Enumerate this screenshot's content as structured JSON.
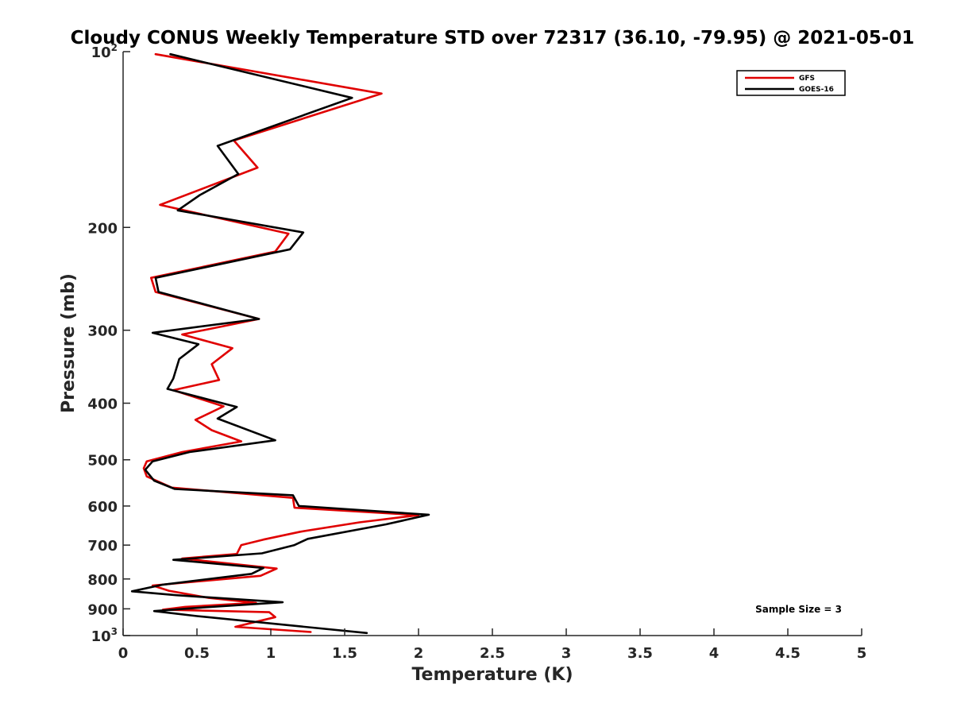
{
  "chart_data": {
    "type": "line",
    "title": "Cloudy CONUS Weekly Temperature STD over 72317 (36.10, -79.95) @ 2021-05-01",
    "xlabel": "Temperature (K)",
    "ylabel": "Pressure (mb)",
    "xlim": [
      0,
      5
    ],
    "ylim": [
      100,
      1000
    ],
    "y_scale": "log",
    "y_reversed": true,
    "grid": false,
    "legend_position": "top-right",
    "x_ticks": [
      "0",
      "0.5",
      "1",
      "1.5",
      "2",
      "2.5",
      "3",
      "3.5",
      "4",
      "4.5",
      "5"
    ],
    "y_ticks": [
      {
        "value": 100,
        "base": "10",
        "exp": "2"
      },
      {
        "value": 200,
        "label": "200"
      },
      {
        "value": 300,
        "label": "300"
      },
      {
        "value": 400,
        "label": "400"
      },
      {
        "value": 500,
        "label": "500"
      },
      {
        "value": 600,
        "label": "600"
      },
      {
        "value": 700,
        "label": "700"
      },
      {
        "value": 800,
        "label": "800"
      },
      {
        "value": 900,
        "label": "900"
      },
      {
        "value": 1000,
        "base": "10",
        "exp": "3"
      }
    ],
    "annotation": "Sample Size = 3",
    "series": [
      {
        "name": "GFS",
        "color": "#e00000",
        "points": [
          [
            0.22,
            101
          ],
          [
            1.75,
            118
          ],
          [
            0.75,
            142
          ],
          [
            0.91,
            158
          ],
          [
            0.25,
            183
          ],
          [
            1.12,
            205
          ],
          [
            1.03,
            220
          ],
          [
            0.19,
            244
          ],
          [
            0.22,
            258
          ],
          [
            0.92,
            287
          ],
          [
            0.4,
            305
          ],
          [
            0.74,
            322
          ],
          [
            0.6,
            343
          ],
          [
            0.65,
            365
          ],
          [
            0.34,
            380
          ],
          [
            0.68,
            405
          ],
          [
            0.49,
            427
          ],
          [
            0.6,
            445
          ],
          [
            0.8,
            465
          ],
          [
            0.4,
            485
          ],
          [
            0.16,
            503
          ],
          [
            0.14,
            517
          ],
          [
            0.16,
            534
          ],
          [
            0.33,
            558
          ],
          [
            1.15,
            581
          ],
          [
            1.16,
            604
          ],
          [
            2.0,
            622
          ],
          [
            1.6,
            640
          ],
          [
            1.2,
            664
          ],
          [
            0.95,
            685
          ],
          [
            0.8,
            700
          ],
          [
            0.77,
            725
          ],
          [
            0.4,
            738
          ],
          [
            1.04,
            768
          ],
          [
            0.93,
            790
          ],
          [
            0.2,
            821
          ],
          [
            0.31,
            838
          ],
          [
            0.58,
            862
          ],
          [
            0.9,
            879
          ],
          [
            0.42,
            893
          ],
          [
            0.27,
            903
          ],
          [
            0.99,
            912
          ],
          [
            1.03,
            930
          ],
          [
            0.76,
            966
          ],
          [
            1.27,
            986
          ]
        ]
      },
      {
        "name": "GOES-16",
        "color": "#000000",
        "points": [
          [
            0.32,
            101
          ],
          [
            1.55,
            120
          ],
          [
            0.64,
            145
          ],
          [
            0.78,
            162
          ],
          [
            0.52,
            176
          ],
          [
            0.37,
            187
          ],
          [
            1.22,
            204
          ],
          [
            1.13,
            218
          ],
          [
            0.22,
            244
          ],
          [
            0.24,
            258
          ],
          [
            0.92,
            287
          ],
          [
            0.2,
            303
          ],
          [
            0.51,
            317
          ],
          [
            0.38,
            336
          ],
          [
            0.34,
            363
          ],
          [
            0.3,
            378
          ],
          [
            0.77,
            406
          ],
          [
            0.64,
            425
          ],
          [
            1.03,
            463
          ],
          [
            0.45,
            485
          ],
          [
            0.2,
            503
          ],
          [
            0.15,
            520
          ],
          [
            0.21,
            543
          ],
          [
            0.35,
            561
          ],
          [
            1.15,
            575
          ],
          [
            1.19,
            600
          ],
          [
            2.07,
            621
          ],
          [
            1.78,
            645
          ],
          [
            1.25,
            683
          ],
          [
            1.16,
            700
          ],
          [
            0.94,
            723
          ],
          [
            0.34,
            742
          ],
          [
            0.95,
            766
          ],
          [
            0.87,
            784
          ],
          [
            0.27,
            818
          ],
          [
            0.06,
            840
          ],
          [
            0.36,
            853
          ],
          [
            1.08,
            877
          ],
          [
            0.52,
            896
          ],
          [
            0.21,
            908
          ],
          [
            0.5,
            926
          ],
          [
            1.65,
            990
          ]
        ]
      }
    ]
  }
}
